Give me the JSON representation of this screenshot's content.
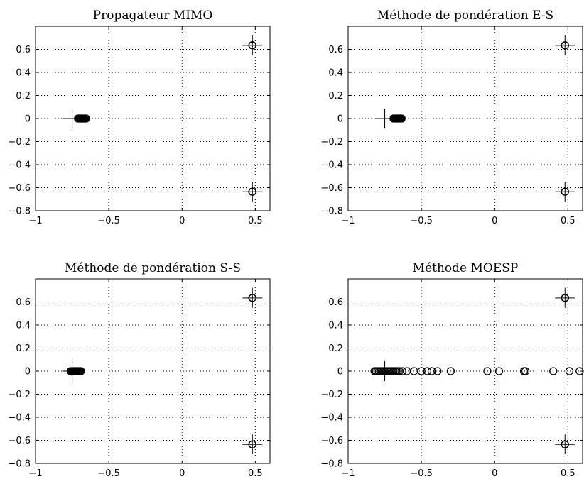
{
  "chart_data": [
    {
      "type": "scatter",
      "title": "Propagateur MIMO",
      "xlim": [
        -1,
        0.6
      ],
      "ylim": [
        -0.8,
        0.8
      ],
      "xticks": [
        -1,
        -0.5,
        0,
        0.5
      ],
      "xtick_labels": [
        "−1",
        "−0.5",
        "0",
        "0.5"
      ],
      "yticks": [
        -0.8,
        -0.6,
        -0.4,
        -0.2,
        0,
        0.2,
        0.4,
        0.6
      ],
      "ytick_labels": [
        "−0.8",
        "−0.6",
        "−0.4",
        "−0.2",
        "0",
        "0.2",
        "0.4",
        "0.6"
      ],
      "grid": true,
      "series": [
        {
          "marker": "circle",
          "points": [
            [
              -0.71,
              0
            ],
            [
              -0.705,
              0
            ],
            [
              -0.7,
              0
            ],
            [
              -0.695,
              0
            ],
            [
              -0.69,
              0
            ],
            [
              -0.685,
              0
            ],
            [
              -0.68,
              0
            ],
            [
              -0.675,
              0
            ],
            [
              -0.67,
              0
            ],
            [
              -0.665,
              0
            ],
            [
              -0.66,
              0
            ],
            [
              -0.655,
              0
            ],
            [
              0.48,
              0.635
            ],
            [
              0.48,
              0.635
            ],
            [
              0.48,
              0.635
            ],
            [
              0.48,
              -0.635
            ],
            [
              0.48,
              -0.635
            ],
            [
              0.48,
              -0.635
            ]
          ]
        },
        {
          "marker": "plus",
          "points": [
            [
              -0.75,
              0
            ],
            [
              0.48,
              0.635
            ],
            [
              0.48,
              -0.635
            ]
          ]
        }
      ]
    },
    {
      "type": "scatter",
      "title": "Méthode de pondération E-S",
      "xlim": [
        -1,
        0.6
      ],
      "ylim": [
        -0.8,
        0.8
      ],
      "xticks": [
        -1,
        -0.5,
        0,
        0.5
      ],
      "xtick_labels": [
        "−1",
        "−0.5",
        "0",
        "0.5"
      ],
      "yticks": [
        -0.8,
        -0.6,
        -0.4,
        -0.2,
        0,
        0.2,
        0.4,
        0.6
      ],
      "ytick_labels": [
        "−0.8",
        "−0.6",
        "−0.4",
        "−0.2",
        "0",
        "0.2",
        "0.4",
        "0.6"
      ],
      "grid": true,
      "series": [
        {
          "marker": "circle",
          "points": [
            [
              -0.69,
              0
            ],
            [
              -0.685,
              0
            ],
            [
              -0.68,
              0
            ],
            [
              -0.675,
              0
            ],
            [
              -0.67,
              0
            ],
            [
              -0.665,
              0
            ],
            [
              -0.66,
              0
            ],
            [
              -0.655,
              0
            ],
            [
              -0.65,
              0
            ],
            [
              -0.645,
              0
            ],
            [
              -0.64,
              0
            ],
            [
              -0.635,
              0
            ],
            [
              0.48,
              0.635
            ],
            [
              0.48,
              0.635
            ],
            [
              0.48,
              -0.635
            ],
            [
              0.48,
              -0.635
            ]
          ]
        },
        {
          "marker": "plus",
          "points": [
            [
              -0.75,
              0
            ],
            [
              0.48,
              0.635
            ],
            [
              0.48,
              -0.635
            ]
          ]
        }
      ]
    },
    {
      "type": "scatter",
      "title": "Méthode de pondération S-S",
      "xlim": [
        -1,
        0.6
      ],
      "ylim": [
        -0.8,
        0.8
      ],
      "xticks": [
        -1,
        -0.5,
        0,
        0.5
      ],
      "xtick_labels": [
        "−1",
        "−0.5",
        "0",
        "0.5"
      ],
      "yticks": [
        -0.8,
        -0.6,
        -0.4,
        -0.2,
        0,
        0.2,
        0.4,
        0.6
      ],
      "ytick_labels": [
        "−0.8",
        "−0.6",
        "−0.4",
        "−0.2",
        "0",
        "0.2",
        "0.4",
        "0.6"
      ],
      "grid": true,
      "series": [
        {
          "marker": "circle",
          "points": [
            [
              -0.76,
              0
            ],
            [
              -0.755,
              0
            ],
            [
              -0.75,
              0
            ],
            [
              -0.745,
              0
            ],
            [
              -0.74,
              0
            ],
            [
              -0.735,
              0
            ],
            [
              -0.73,
              0
            ],
            [
              -0.725,
              0
            ],
            [
              -0.72,
              0
            ],
            [
              -0.715,
              0
            ],
            [
              -0.71,
              0
            ],
            [
              -0.705,
              0
            ],
            [
              -0.7,
              0
            ],
            [
              -0.695,
              0
            ],
            [
              -0.69,
              0
            ],
            [
              0.48,
              0.635
            ],
            [
              0.48,
              0.635
            ],
            [
              0.48,
              -0.635
            ],
            [
              0.48,
              -0.635
            ]
          ]
        },
        {
          "marker": "plus",
          "points": [
            [
              -0.75,
              0
            ],
            [
              0.48,
              0.635
            ],
            [
              0.48,
              -0.635
            ]
          ]
        }
      ]
    },
    {
      "type": "scatter",
      "title": "Méthode MOESP",
      "xlim": [
        -1,
        0.6
      ],
      "ylim": [
        -0.8,
        0.8
      ],
      "xticks": [
        -1,
        -0.5,
        0,
        0.5
      ],
      "xtick_labels": [
        "−1",
        "−0.5",
        "0",
        "0.5"
      ],
      "yticks": [
        -0.8,
        -0.6,
        -0.4,
        -0.2,
        0,
        0.2,
        0.4,
        0.6
      ],
      "ytick_labels": [
        "−0.8",
        "−0.6",
        "−0.4",
        "−0.2",
        "0",
        "0.2",
        "0.4",
        "0.6"
      ],
      "grid": true,
      "series": [
        {
          "marker": "circle",
          "points": [
            [
              -0.82,
              0
            ],
            [
              -0.81,
              0
            ],
            [
              -0.8,
              0
            ],
            [
              -0.79,
              0
            ],
            [
              -0.78,
              0
            ],
            [
              -0.77,
              0
            ],
            [
              -0.76,
              0
            ],
            [
              -0.75,
              0
            ],
            [
              -0.74,
              0
            ],
            [
              -0.73,
              0
            ],
            [
              -0.72,
              0
            ],
            [
              -0.71,
              0
            ],
            [
              -0.7,
              0
            ],
            [
              -0.69,
              0
            ],
            [
              -0.68,
              0
            ],
            [
              -0.67,
              0
            ],
            [
              -0.66,
              0
            ],
            [
              -0.65,
              0
            ],
            [
              -0.63,
              0
            ],
            [
              -0.6,
              0
            ],
            [
              -0.55,
              0
            ],
            [
              -0.5,
              0
            ],
            [
              -0.46,
              0
            ],
            [
              -0.43,
              0
            ],
            [
              -0.39,
              0
            ],
            [
              -0.3,
              0
            ],
            [
              -0.05,
              0
            ],
            [
              0.03,
              0
            ],
            [
              0.2,
              0
            ],
            [
              0.21,
              0
            ],
            [
              0.4,
              0
            ],
            [
              0.51,
              0
            ],
            [
              0.58,
              0
            ],
            [
              0.48,
              0.635
            ],
            [
              0.48,
              0.635
            ],
            [
              0.48,
              0.635
            ],
            [
              0.48,
              -0.635
            ],
            [
              0.48,
              -0.635
            ],
            [
              0.48,
              -0.635
            ]
          ]
        },
        {
          "marker": "plus",
          "points": [
            [
              -0.75,
              0
            ],
            [
              0.48,
              0.635
            ],
            [
              0.48,
              -0.635
            ]
          ]
        }
      ]
    }
  ]
}
